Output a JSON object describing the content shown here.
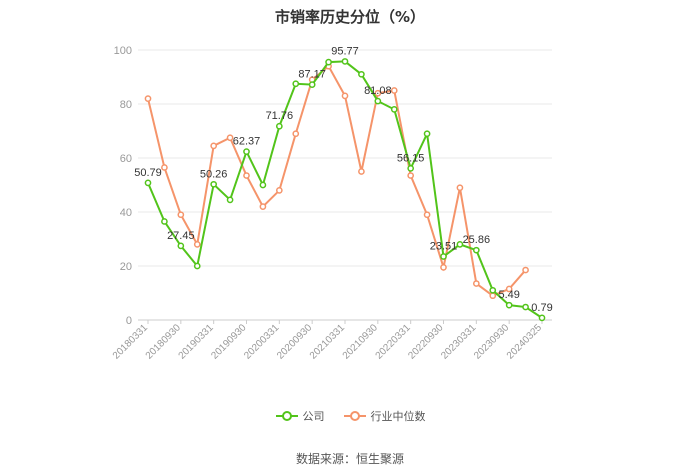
{
  "chart_data": {
    "type": "line",
    "title": "市销率历史分位（%）",
    "x_tick_labels": [
      "20180331",
      "20180930",
      "20190331",
      "20190930",
      "20200331",
      "20200930",
      "20210331",
      "20210930",
      "20220331",
      "20220930",
      "20230331",
      "20230930",
      "20240325"
    ],
    "ylim": [
      0,
      100
    ],
    "y_ticks": [
      "0",
      "20",
      "40",
      "60",
      "80",
      "100"
    ],
    "grid": true,
    "legend_position": "bottom",
    "colors": {
      "company": "#52c41a",
      "industry": "#f5946a"
    },
    "series": [
      {
        "name": "公司",
        "values": [
          50.79,
          36.5,
          27.45,
          20.0,
          50.26,
          44.5,
          62.37,
          50.0,
          71.76,
          87.5,
          87.17,
          95.5,
          95.77,
          91.0,
          81.08,
          78.0,
          56.15,
          69.0,
          23.51,
          28.0,
          25.86,
          11.0,
          5.49,
          4.8,
          0.79
        ],
        "point_labels": {
          "0": "50.79",
          "2": "27.45",
          "4": "50.26",
          "6": "62.37",
          "8": "71.76",
          "10": "87.17",
          "12": "95.77",
          "14": "81.08",
          "16": "56.15",
          "18": "23.51",
          "20": "25.86",
          "22": "5.49",
          "24": "0.79"
        }
      },
      {
        "name": "行业中位数",
        "values": [
          82.0,
          56.5,
          39.0,
          28.0,
          64.5,
          67.5,
          53.5,
          42.0,
          48.0,
          69.0,
          89.0,
          94.0,
          83.0,
          55.0,
          84.0,
          85.0,
          53.5,
          39.0,
          19.5,
          49.0,
          13.5,
          9.0,
          11.5,
          18.5
        ]
      }
    ]
  },
  "legend": {
    "company": "公司",
    "industry": "行业中位数"
  },
  "source": "数据来源：恒生聚源"
}
